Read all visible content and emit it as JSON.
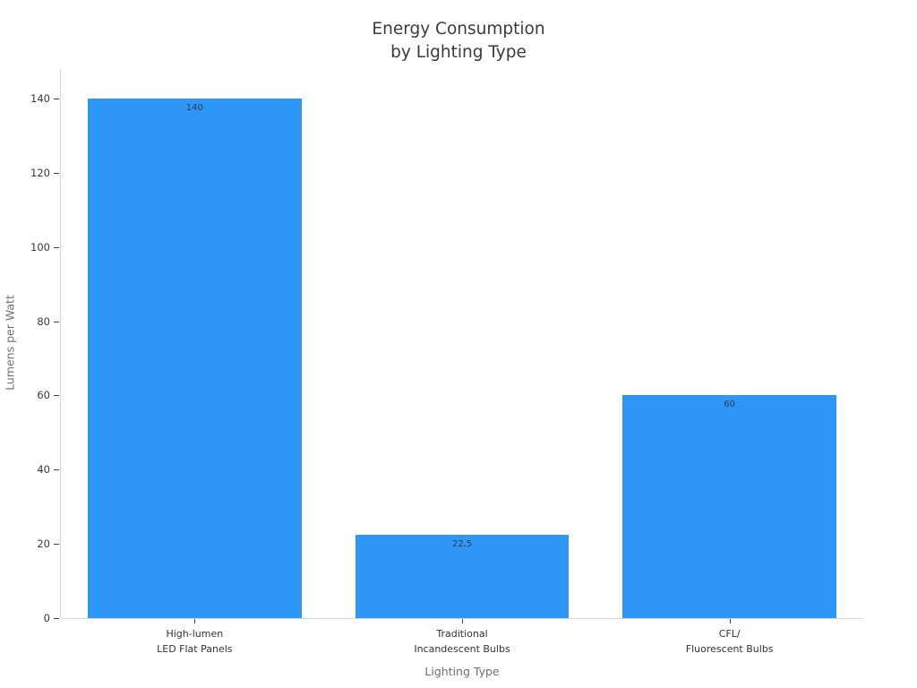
{
  "chart_data": {
    "type": "bar",
    "title": "Energy Consumption\nby Lighting Type",
    "categories": [
      "High-lumen\nLED Flat Panels",
      "Traditional\nIncandescent Bulbs",
      "CFL/\nFluorescent Bulbs"
    ],
    "values": [
      140,
      22.5,
      60
    ],
    "value_labels": [
      "140",
      "22.5",
      "60"
    ],
    "xlabel": "Lighting Type",
    "ylabel": "Lumens per Watt",
    "yticks": [
      0,
      20,
      40,
      60,
      80,
      100,
      120,
      140
    ],
    "ylim": [
      0,
      148.45
    ],
    "grid": false,
    "legend_position": "none",
    "bar_color": "#2E96F5",
    "value_label_color": "#2a3f5f"
  }
}
